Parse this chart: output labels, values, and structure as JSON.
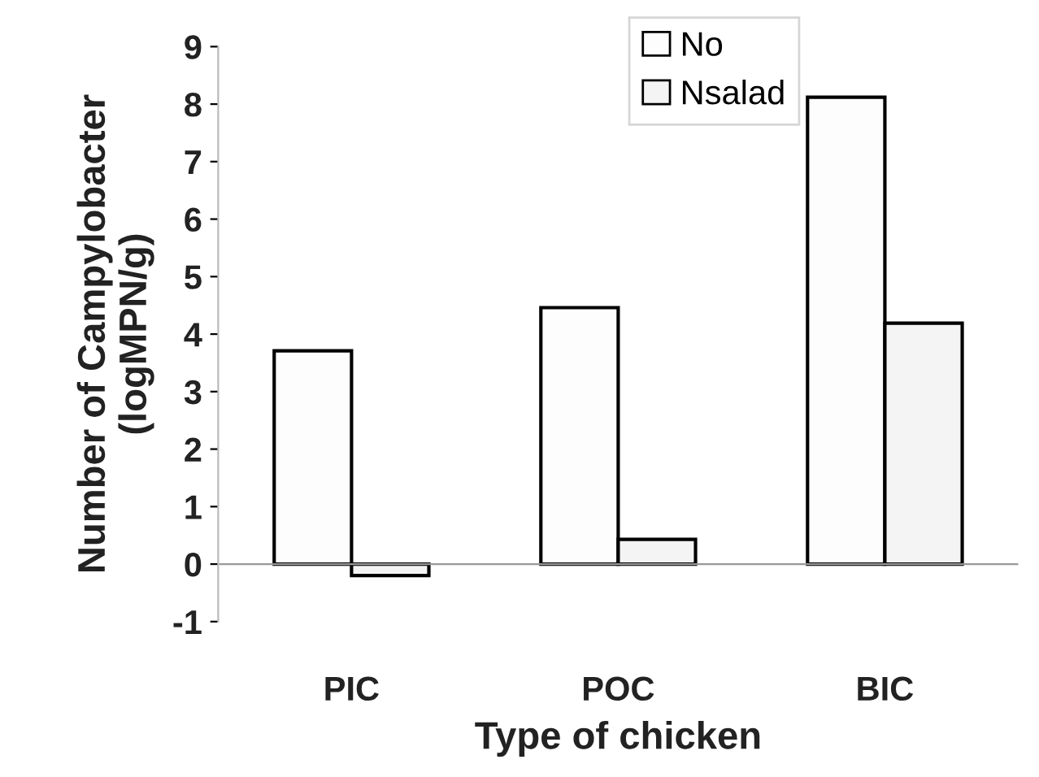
{
  "chart_data": {
    "type": "bar",
    "xlabel": "Type of chicken",
    "ylabel": "Number of Campylobacter\n(logMPN/g)",
    "categories": [
      "PIC",
      "POC",
      "BIC"
    ],
    "series": [
      {
        "name": "No",
        "color": "#fdfdfd",
        "values": [
          3.71,
          4.46,
          8.12
        ]
      },
      {
        "name": "Nsalad",
        "color": "#f4f4f4",
        "values": [
          -0.2,
          0.43,
          4.19
        ]
      }
    ],
    "ylim": [
      -1,
      9
    ],
    "yticks": [
      -1,
      0,
      1,
      2,
      3,
      4,
      5,
      6,
      7,
      8,
      9
    ],
    "grid": false,
    "ref_lines": [
      {
        "axis": "y",
        "value": 0,
        "color": "#999999"
      }
    ],
    "legend": "top"
  }
}
